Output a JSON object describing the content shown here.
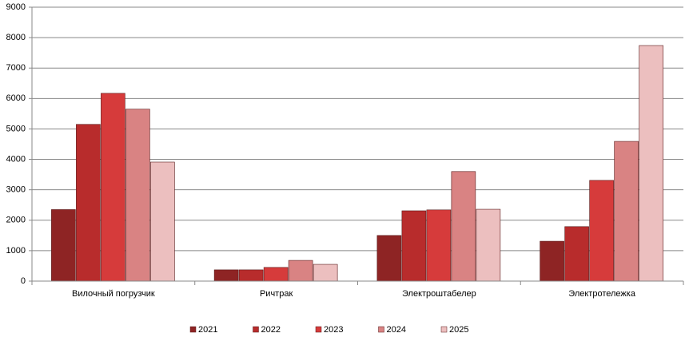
{
  "chart_data": {
    "type": "bar",
    "categories": [
      "Вилочный погрузчик",
      "Ричтрак",
      "Электроштабелер",
      "Электротележка"
    ],
    "series": [
      {
        "name": "2021",
        "color": "#8e2424",
        "values": [
          2350,
          370,
          1500,
          1310
        ]
      },
      {
        "name": "2022",
        "color": "#b82c2c",
        "values": [
          5150,
          370,
          2310,
          1790
        ]
      },
      {
        "name": "2023",
        "color": "#d63b3b",
        "values": [
          6170,
          450,
          2340,
          3310
        ]
      },
      {
        "name": "2024",
        "color": "#d98383",
        "values": [
          5650,
          680,
          3600,
          4590
        ]
      },
      {
        "name": "2025",
        "color": "#ecbfbf",
        "values": [
          3910,
          550,
          2360,
          7740
        ]
      }
    ],
    "ylim": [
      0,
      9000
    ],
    "yticks": [
      0,
      1000,
      2000,
      3000,
      4000,
      5000,
      6000,
      7000,
      8000,
      9000
    ],
    "grid": true
  }
}
